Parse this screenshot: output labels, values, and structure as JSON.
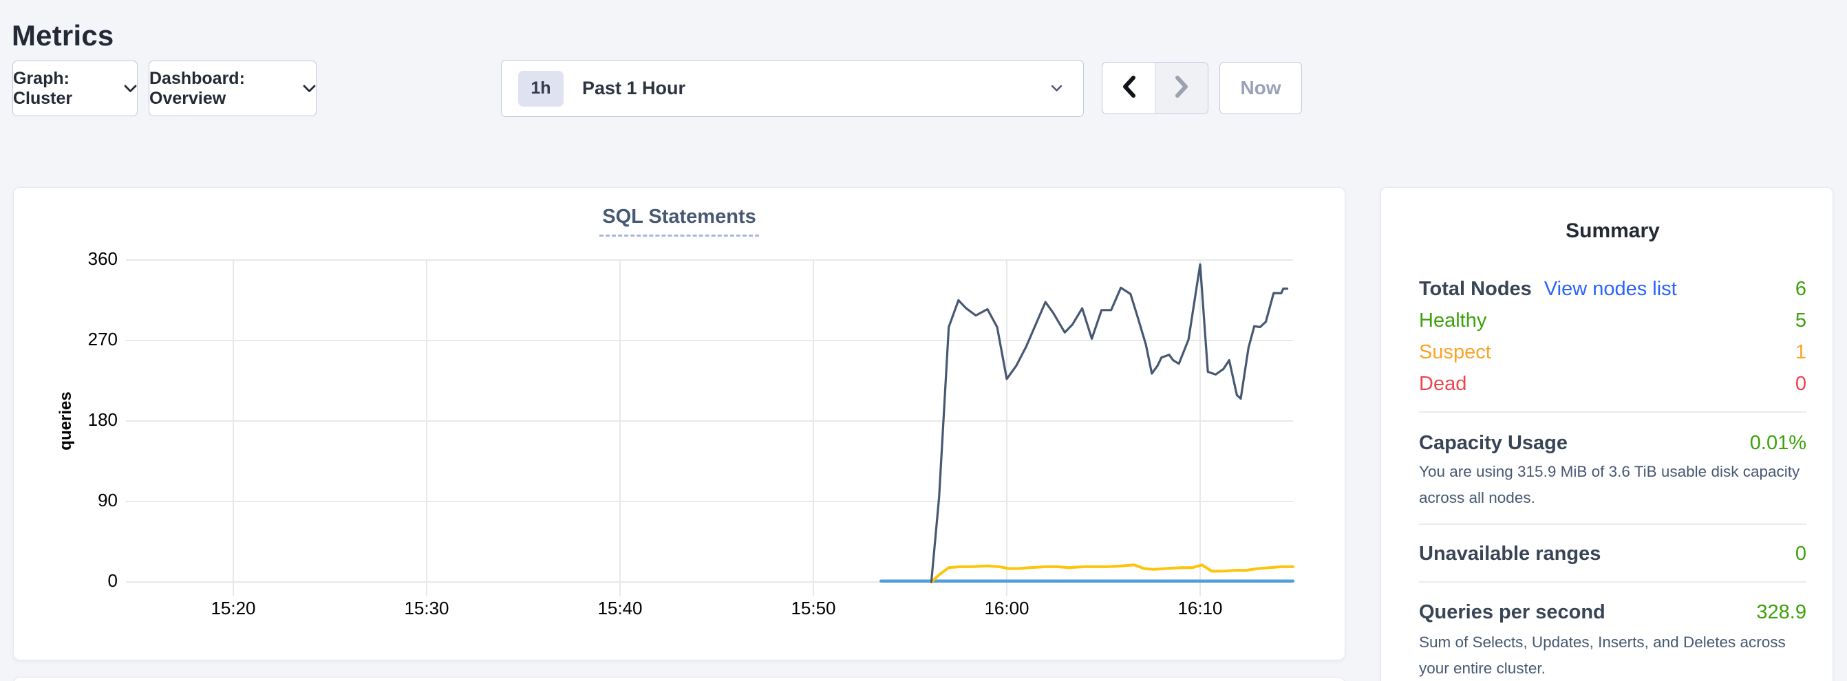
{
  "page_title": "Metrics",
  "toolbar": {
    "graph_dropdown_label": "Graph: Cluster",
    "dashboard_dropdown_label": "Dashboard: Overview",
    "time_range_badge": "1h",
    "time_range_label": "Past 1 Hour",
    "now_button_label": "Now"
  },
  "chart": {
    "title": "SQL Statements",
    "ylabel": "queries"
  },
  "chart_data": {
    "type": "line",
    "title": "SQL Statements",
    "xlabel": "",
    "ylabel": "queries",
    "x_unit": "minutes after 15:20",
    "xlim": [
      0,
      54.8
    ],
    "ylim": [
      0,
      360
    ],
    "grid": true,
    "legend": null,
    "y_ticks": [
      0,
      90,
      180,
      270,
      360
    ],
    "x_ticks": [
      {
        "t": 0,
        "label": "15:20"
      },
      {
        "t": 10,
        "label": "15:30"
      },
      {
        "t": 20,
        "label": "15:40"
      },
      {
        "t": 30,
        "label": "15:50"
      },
      {
        "t": 40,
        "label": "16:00"
      },
      {
        "t": 50,
        "label": "16:10"
      }
    ],
    "series": [
      {
        "id": "series-blue-flat",
        "color": "#4f9ed9",
        "stroke_width": 4.5,
        "points": [
          [
            33.5,
            1
          ],
          [
            54.8,
            1
          ]
        ]
      },
      {
        "id": "series-yellow",
        "color": "#fdc40a",
        "stroke_width": 4,
        "points": [
          [
            36.1,
            0
          ],
          [
            36.5,
            8
          ],
          [
            37.0,
            16
          ],
          [
            37.6,
            17
          ],
          [
            38.2,
            17
          ],
          [
            39.0,
            18
          ],
          [
            39.6,
            17
          ],
          [
            40.1,
            15
          ],
          [
            40.6,
            15
          ],
          [
            41.2,
            16
          ],
          [
            42.0,
            17
          ],
          [
            42.6,
            17
          ],
          [
            43.2,
            16
          ],
          [
            44.0,
            17
          ],
          [
            44.6,
            17
          ],
          [
            45.2,
            17
          ],
          [
            46.0,
            18
          ],
          [
            46.6,
            19
          ],
          [
            47.1,
            15
          ],
          [
            47.6,
            14
          ],
          [
            48.2,
            15
          ],
          [
            49.0,
            16
          ],
          [
            49.6,
            16
          ],
          [
            50.1,
            19
          ],
          [
            50.6,
            12
          ],
          [
            51.1,
            12
          ],
          [
            51.8,
            13
          ],
          [
            52.4,
            13
          ],
          [
            53.0,
            15
          ],
          [
            53.6,
            16
          ],
          [
            54.2,
            17
          ],
          [
            54.8,
            17
          ]
        ]
      },
      {
        "id": "series-navy",
        "color": "#475872",
        "stroke_width": 3.2,
        "points": [
          [
            36.1,
            0
          ],
          [
            36.5,
            95
          ],
          [
            37.0,
            285
          ],
          [
            37.5,
            315
          ],
          [
            37.9,
            306
          ],
          [
            38.4,
            298
          ],
          [
            39.0,
            305
          ],
          [
            39.5,
            285
          ],
          [
            40.0,
            227
          ],
          [
            40.5,
            242
          ],
          [
            41.0,
            263
          ],
          [
            41.4,
            283
          ],
          [
            42.0,
            313
          ],
          [
            42.4,
            301
          ],
          [
            43.0,
            279
          ],
          [
            43.4,
            288
          ],
          [
            43.9,
            306
          ],
          [
            44.4,
            272
          ],
          [
            44.9,
            304
          ],
          [
            45.4,
            304
          ],
          [
            45.9,
            329
          ],
          [
            46.4,
            322
          ],
          [
            46.8,
            294
          ],
          [
            47.2,
            265
          ],
          [
            47.5,
            233
          ],
          [
            47.8,
            242
          ],
          [
            48.0,
            251
          ],
          [
            48.4,
            254
          ],
          [
            48.6,
            248
          ],
          [
            48.9,
            244
          ],
          [
            49.4,
            271
          ],
          [
            50.0,
            355
          ],
          [
            50.4,
            235
          ],
          [
            50.8,
            232
          ],
          [
            51.2,
            238
          ],
          [
            51.5,
            248
          ],
          [
            51.9,
            209
          ],
          [
            52.1,
            205
          ],
          [
            52.5,
            262
          ],
          [
            52.8,
            286
          ],
          [
            53.1,
            285
          ],
          [
            53.4,
            291
          ],
          [
            53.8,
            323
          ],
          [
            54.2,
            323
          ],
          [
            54.3,
            328
          ],
          [
            54.5,
            328
          ]
        ]
      }
    ]
  },
  "summary": {
    "title": "Summary",
    "total_nodes_label": "Total Nodes",
    "view_nodes_link": "View nodes list",
    "total_nodes_value": "6",
    "node_status_rows": [
      {
        "label": "Healthy",
        "value": "5",
        "status": "healthy"
      },
      {
        "label": "Suspect",
        "value": "1",
        "status": "suspect"
      },
      {
        "label": "Dead",
        "value": "0",
        "status": "dead"
      }
    ],
    "capacity_label": "Capacity Usage",
    "capacity_value": "0.01%",
    "capacity_description": "You are using 315.9 MiB of 3.6 TiB usable disk capacity across all nodes.",
    "unavailable_label": "Unavailable ranges",
    "unavailable_value": "0",
    "qps_label": "Queries per second",
    "qps_value": "328.9",
    "qps_description": "Sum of Selects, Updates, Inserts, and Deletes across your entire cluster."
  },
  "colors": {
    "healthy_green": "#3da10b",
    "suspect_orange": "#f9a327",
    "dead_red": "#f0434c",
    "link_blue": "#2962ff",
    "heading_slate": "#394455",
    "chart_navy": "#475872",
    "chart_yellow": "#fdc40a",
    "chart_blue": "#4f9ed9"
  }
}
